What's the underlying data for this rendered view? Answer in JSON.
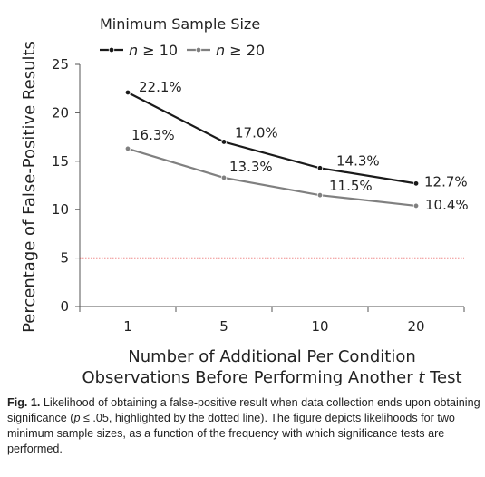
{
  "chart_data": {
    "type": "line",
    "categories": [
      "1",
      "5",
      "10",
      "20"
    ],
    "series": [
      {
        "name": "n ≥ 10",
        "values": [
          22.1,
          17.0,
          14.3,
          12.7
        ],
        "labels": [
          "22.1%",
          "17.0%",
          "14.3%",
          "12.7%"
        ],
        "color": "#1a1a1a"
      },
      {
        "name": "n ≥ 20",
        "values": [
          16.3,
          13.3,
          11.5,
          10.4
        ],
        "labels": [
          "16.3%",
          "13.3%",
          "11.5%",
          "10.4%"
        ],
        "color": "#808080"
      }
    ],
    "reference_line": {
      "value": 5,
      "style": "dotted",
      "color": "#e02020"
    },
    "legend_title": "Minimum Sample Size",
    "legend_placement": "top-left",
    "ylabel": "Percentage of False-Positive Results",
    "xlabel_line1": "Number of Additional Per Condition",
    "xlabel_line2_before": "Observations Before Performing Another ",
    "xlabel_line2_italic": "t",
    "xlabel_line2_after": " Test",
    "ylim": [
      0,
      25
    ],
    "yticks": [
      "0",
      "5",
      "10",
      "15",
      "20",
      "25"
    ],
    "grid": false
  },
  "caption": {
    "figure_number": "Fig. 1.",
    "text_before_p": " Likelihood of obtaining a false-positive result when data collection ends upon obtaining significance (",
    "p_symbol": "p",
    "text_after_p": " ≤ .05, highlighted by the dotted line). The figure depicts likelihoods for two minimum sample sizes, as a function of the frequency with which significance tests are performed."
  }
}
